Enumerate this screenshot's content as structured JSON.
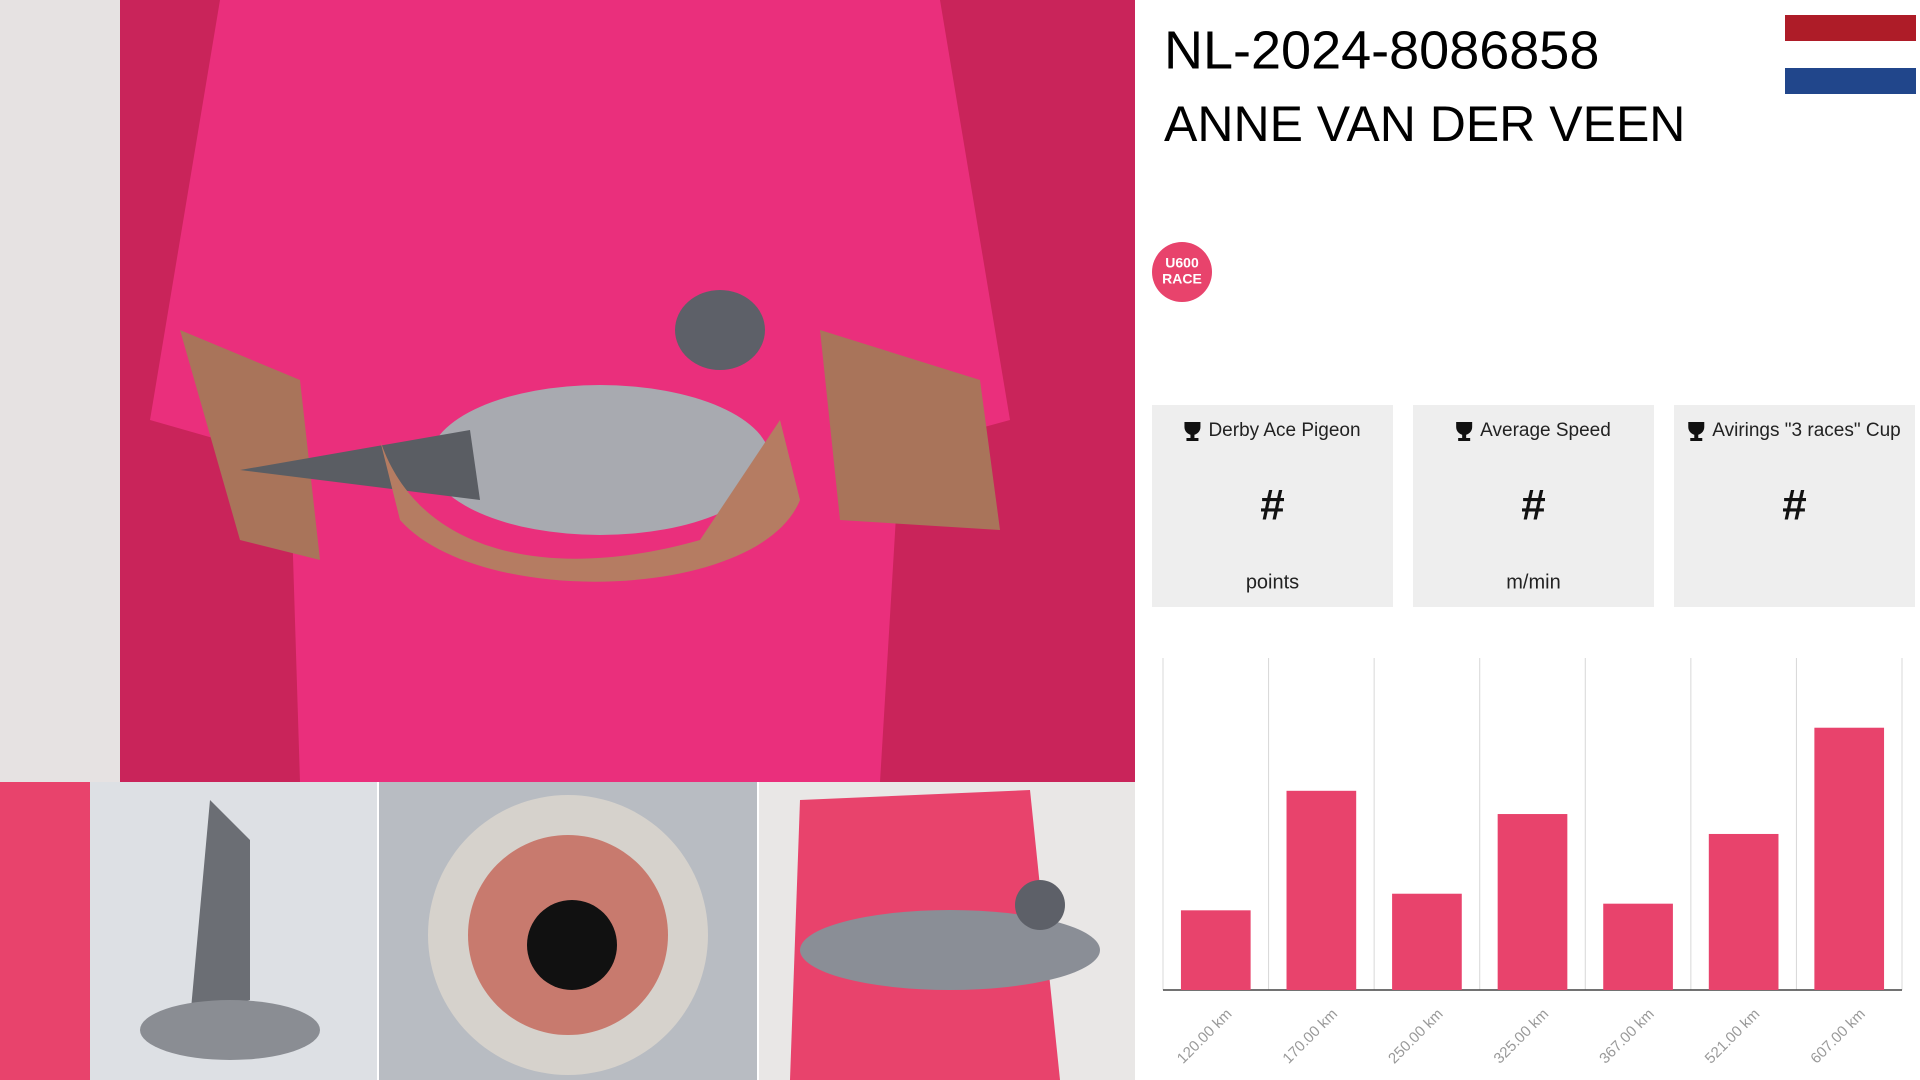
{
  "header": {
    "ring": "NL-2024-8086858",
    "name": "ANNE VAN DER VEEN"
  },
  "badge": {
    "line1": "U600",
    "line2": "RACE"
  },
  "cards": [
    {
      "title": "Derby Ace Pigeon",
      "value": "#",
      "unit": "points"
    },
    {
      "title": "Average Speed",
      "value": "#",
      "unit": "m/min"
    },
    {
      "title": "Avirings \"3 races\" Cup",
      "value": "#",
      "unit": ""
    }
  ],
  "chart_data": {
    "type": "bar",
    "categories": [
      "120.00 km",
      "170.00 km",
      "250.00 km",
      "325.00 km",
      "367.00 km",
      "521.00 km",
      "607.00 km"
    ],
    "values": [
      24,
      60,
      29,
      53,
      26,
      47,
      79
    ],
    "color": "#e8436c",
    "ylim": [
      0,
      100
    ],
    "grid": true
  }
}
